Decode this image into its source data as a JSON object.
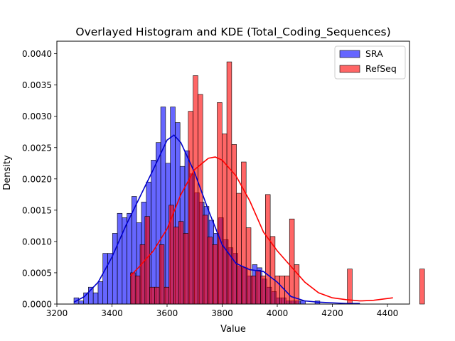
{
  "chart_data": {
    "type": "bar",
    "title": "Overlayed Histogram and KDE (Total_Coding_Sequences)",
    "xlabel": "Value",
    "ylabel": "Density",
    "xlim": [
      3200,
      4480
    ],
    "ylim": [
      0,
      0.0042
    ],
    "grid": false,
    "legend_placement": "top-right",
    "x_ticks": [
      3200,
      3400,
      3600,
      3800,
      4000,
      4200,
      4400
    ],
    "y_ticks": [
      0,
      0.0005,
      0.001,
      0.0015,
      0.002,
      0.0025,
      0.003,
      0.0035,
      0.004
    ],
    "x_tick_labels": [
      "3200",
      "3400",
      "3600",
      "3800",
      "4000",
      "4200",
      "4400"
    ],
    "y_tick_labels": [
      "0.0000",
      "0.0005",
      "0.0010",
      "0.0015",
      "0.0020",
      "0.0025",
      "0.0030",
      "0.0035",
      "0.0040"
    ],
    "series": [
      {
        "name": "SRA",
        "color": "#0000ff",
        "alpha": 0.6,
        "kde_color": "#0000cc",
        "bin_start": 3262,
        "bin_width": 17.5,
        "values": [
          0.0001,
          5e-05,
          0.00018,
          0.00027,
          0.00018,
          0.00036,
          0.00081,
          0.00081,
          0.00113,
          0.00145,
          0.00138,
          0.00145,
          0.00172,
          0.0013,
          0.00163,
          0.00195,
          0.0023,
          0.00258,
          0.00315,
          0.00225,
          0.00315,
          0.0029,
          0.0022,
          0.00245,
          0.00208,
          0.00178,
          0.00163,
          0.00156,
          0.00134,
          0.00113,
          0.00138,
          0.00103,
          0.0009,
          0.00081,
          0.0006,
          0.00058,
          0.00045,
          0.00063,
          0.00058,
          0.0004,
          0.00027,
          0.0002,
          0.0001,
          0.0001,
          5e-05,
          5e-05,
          5e-05,
          5e-05,
          0.0,
          0.0,
          5e-05,
          0.0,
          0.0,
          0.0,
          0.0,
          0.0,
          0.0,
          0.0,
          0.0,
          0.0,
          0.0
        ]
      },
      {
        "name": "RefSeq",
        "color": "#ff0000",
        "alpha": 0.6,
        "kde_color": "#ff0000",
        "bin_start": 3467,
        "bin_width": 17.5,
        "values": [
          0.0005,
          0.00045,
          0.00095,
          0.0014,
          0.00027,
          0.00027,
          0.00095,
          0.00027,
          0.00158,
          0.00123,
          0.00132,
          0.00113,
          0.00308,
          0.00365,
          0.00335,
          0.00142,
          0.00107,
          0.00095,
          0.00322,
          0.00272,
          0.00387,
          0.00255,
          0.00177,
          0.00227,
          0.00122,
          0.00045,
          0.00054,
          0.00045,
          0.00175,
          0.00108,
          0.00045,
          0.00045,
          0.00045,
          0.00136,
          0.00063,
          0.0,
          0.0,
          0.0,
          0.0,
          0.0,
          0.0,
          0.0,
          0.0,
          0.0,
          0.0,
          0.00056,
          0.0,
          0.0,
          0.0,
          0.0,
          0.0,
          0.0,
          0.0,
          0.0,
          0.0,
          0.0,
          0.0,
          0.0,
          0.0,
          0.0,
          0.00056
        ]
      }
    ],
    "kde": [
      {
        "name": "SRA",
        "color": "#0000cc",
        "x": [
          3262,
          3300,
          3350,
          3400,
          3450,
          3500,
          3550,
          3600,
          3625,
          3650,
          3700,
          3750,
          3800,
          3850,
          3900,
          3950,
          4000,
          4050,
          4100,
          4150,
          4200,
          4250,
          4300
        ],
        "y": [
          3e-05,
          0.00012,
          0.00035,
          0.00075,
          0.00125,
          0.0017,
          0.00215,
          0.00262,
          0.0027,
          0.00258,
          0.0021,
          0.0015,
          0.00095,
          0.00065,
          0.00055,
          0.00052,
          0.00035,
          0.00012,
          5e-05,
          3e-05,
          2e-05,
          1e-05,
          1e-05
        ]
      },
      {
        "name": "RefSeq",
        "color": "#ff0000",
        "x": [
          3467,
          3500,
          3550,
          3600,
          3650,
          3700,
          3750,
          3775,
          3800,
          3850,
          3900,
          3950,
          4000,
          4050,
          4100,
          4150,
          4200,
          4250,
          4300,
          4350,
          4420
        ],
        "y": [
          0.00045,
          0.0006,
          0.00085,
          0.0012,
          0.00175,
          0.00215,
          0.00233,
          0.00235,
          0.0023,
          0.00205,
          0.00165,
          0.00115,
          0.00085,
          0.0006,
          0.00035,
          0.00018,
          0.0001,
          7e-05,
          5e-05,
          6e-05,
          0.0001
        ]
      }
    ]
  }
}
